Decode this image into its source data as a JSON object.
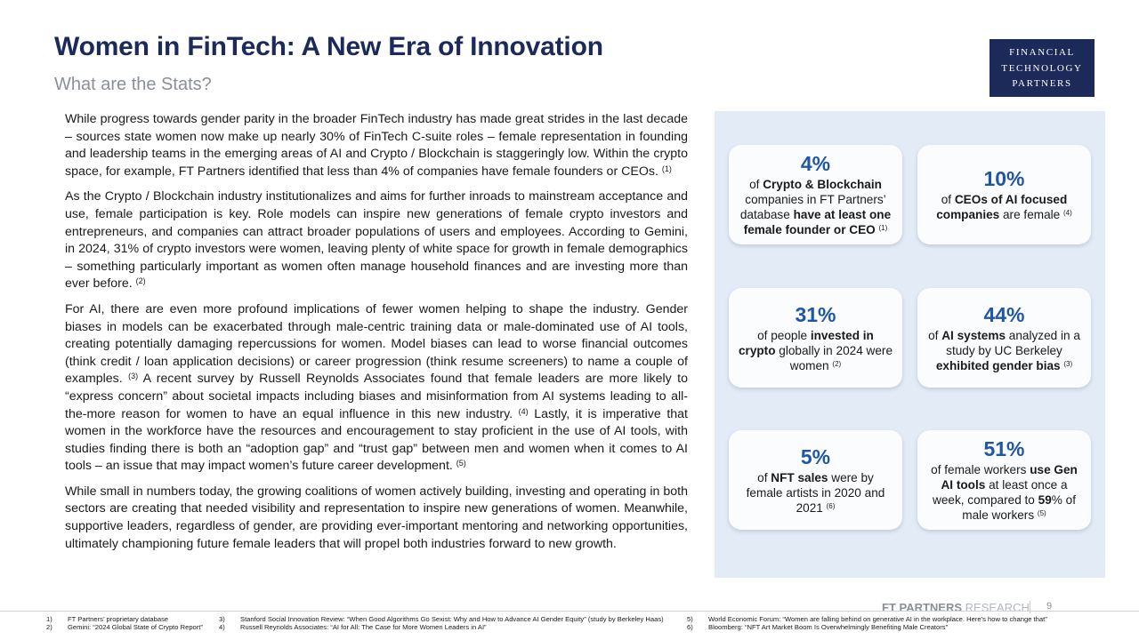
{
  "header": {
    "title": "Women in FinTech: A New Era of Innovation",
    "subtitle": "What are the Stats?"
  },
  "logo": {
    "line1": "FINANCIAL",
    "line2": "TECHNOLOGY",
    "line3": "PARTNERS"
  },
  "body": {
    "p1": "While progress towards gender parity in the broader FinTech industry has made great strides in the last decade – sources state women now make up nearly 30% of FinTech C-suite roles – female representation in founding and leadership teams in the emerging areas of AI and Crypto / Blockchain is staggeringly low. Within the crypto space, for example, FT Partners identified that less than 4% of companies have female founders or CEOs.",
    "p1_ref": "(1)",
    "p2": "As the Crypto / Blockchain industry institutionalizes and aims for further inroads to mainstream acceptance and use, female participation is key. Role models can inspire new generations of female crypto investors and entrepreneurs, and companies can attract broader populations of users and employees. According to Gemini, in 2024, 31% of crypto investors were women, leaving plenty of white space for growth in female demographics – something particularly important as women often manage household finances and are investing more than ever before.",
    "p2_ref": "(2)",
    "p3a": "For AI, there are even more profound implications of fewer women helping to shape the industry. Gender biases in models can be exacerbated through male-centric training data or male-dominated use of AI tools, creating potentially damaging repercussions for women. Model biases can lead to worse financial outcomes (think credit / loan application decisions) or career progression (think resume screeners) to name a couple of examples.",
    "p3a_ref": "(3)",
    "p3b": " A recent survey by Russell Reynolds Associates found that female leaders are more likely to “express concern” about societal impacts including biases and misinformation from AI systems leading to all-the-more reason for women to have an equal influence in this new industry.",
    "p3b_ref": "(4)",
    "p3c": " Lastly, it is imperative that women in the workforce have the resources and encouragement to stay proficient in the use of AI tools, with studies finding there is both an “adoption gap” and “trust gap” between men and women when it comes to AI tools – an issue that may impact women’s future career development.",
    "p3c_ref": "(5)",
    "p4": "While small in numbers today, the growing coalitions of women actively building, investing and operating in both sectors are creating that needed visibility and representation to inspire new generations of women. Meanwhile, supportive leaders, regardless of gender, are providing ever-important mentoring and networking opportunities, ultimately championing future female leaders that will propel both industries forward to new growth."
  },
  "cards": {
    "c1": {
      "stat": "4%",
      "t1": "of ",
      "b1": "Crypto & Blockchain",
      "t2": " companies in FT Partners’ database ",
      "b2": "have at least one female founder or CEO",
      "ref": "(1)"
    },
    "c2": {
      "stat": "10%",
      "t1": "of ",
      "b1": "CEOs of AI focused companies",
      "t2": " are female",
      "ref": "(4)"
    },
    "c3": {
      "stat": "31%",
      "t1": "of people ",
      "b1": "invested in crypto",
      "t2": " globally in 2024 were women",
      "ref": "(2)"
    },
    "c4": {
      "stat": "44%",
      "t1": "of ",
      "b1": "AI systems",
      "t2": " analyzed in a study by UC Berkeley ",
      "b2": "exhibited gender bias",
      "ref": "(3)"
    },
    "c5": {
      "stat": "5%",
      "t1": "of ",
      "b1": "NFT sales",
      "t2": " were by female artists in 2020 and 2021",
      "ref": "(6)"
    },
    "c6": {
      "stat": "51%",
      "t1": "of female workers ",
      "b1": "use Gen AI tools",
      "t2": " at least once a week, compared to ",
      "b2": "59",
      "t3": "% of male workers",
      "ref": "(5)"
    }
  },
  "footer": {
    "brand": "FT PARTNERS",
    "brand_suffix": " RESEARCH",
    "page": "9",
    "notes": [
      {
        "n": "1)",
        "text": "FT Partners’ proprietary database"
      },
      {
        "n": "2)",
        "text": "Gemini: “2024 Global State of Crypto Report”"
      },
      {
        "n": "3)",
        "text": "Stanford Social Innovation Review: “When Good Algorithms Go Sexist: Why and How to Advance AI Gender Equity” (study by Berkeley Haas)"
      },
      {
        "n": "4)",
        "text": "Russell Reynolds Associates: “AI for All: The Case for More Women Leaders in AI”"
      },
      {
        "n": "5)",
        "text": "World Economic Forum: “Women are falling behind on generative AI in the workplace. Here’s how to change that”"
      },
      {
        "n": "6)",
        "text": "Bloomberg: “NFT Art Market Boom  Is Overwhelmingly Benefiting Male Creators”"
      }
    ]
  }
}
